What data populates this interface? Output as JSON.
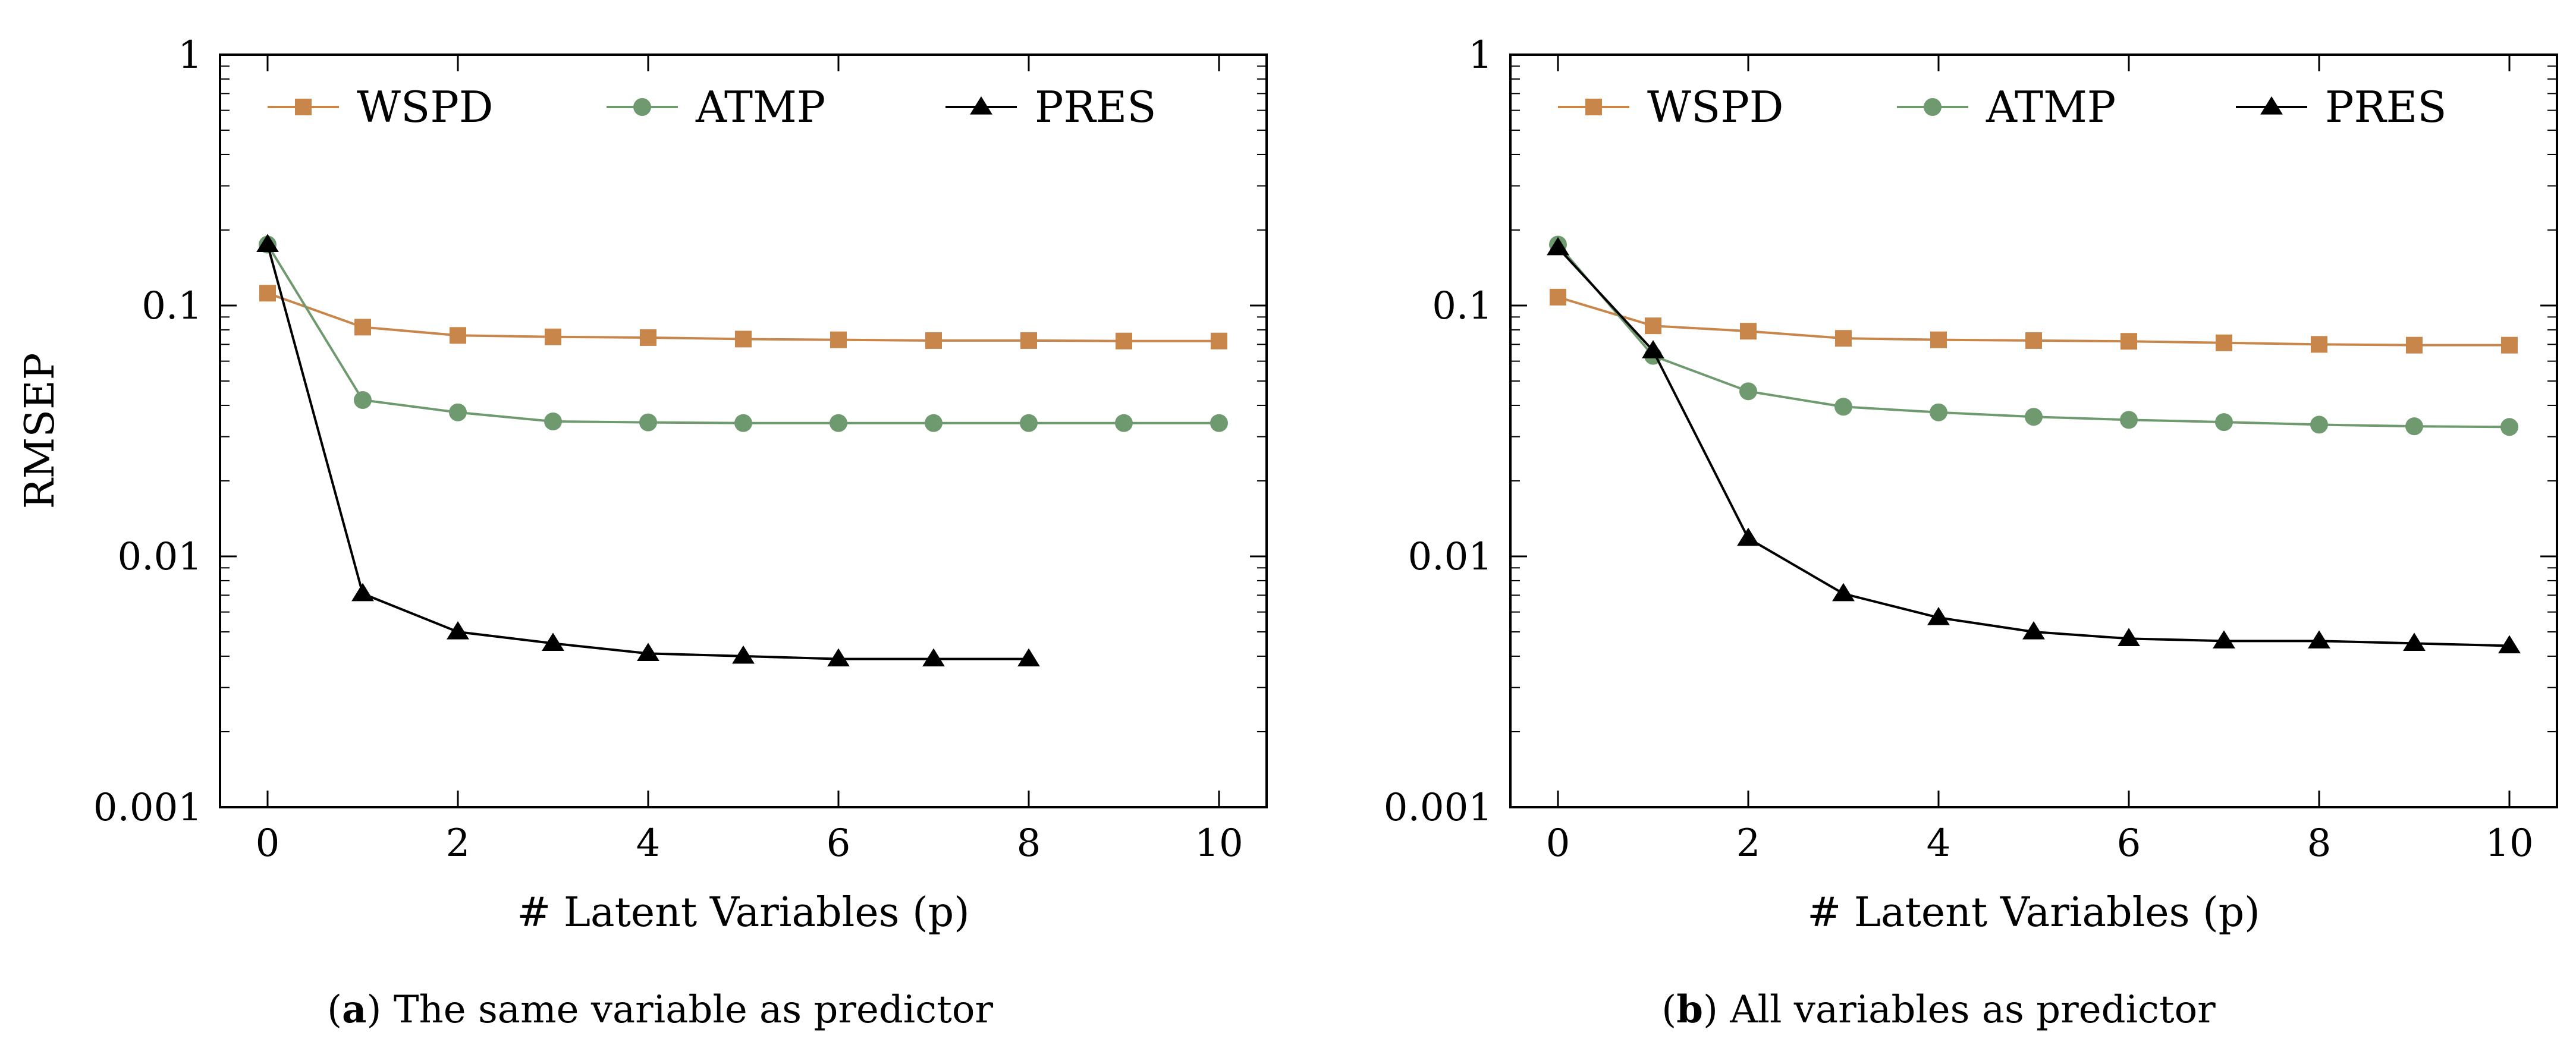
{
  "chart_data": [
    {
      "type": "line",
      "caption_letter": "a",
      "caption_text": " The same variable as predictor",
      "xlabel": "# Latent Variables (p)",
      "ylabel": "RMSEP",
      "xlim": [
        -0.5,
        10.5
      ],
      "ylim": [
        0.001,
        1
      ],
      "yscale": "log",
      "xticks": [
        0,
        2,
        4,
        6,
        8,
        10
      ],
      "yticks": [
        0.001,
        0.01,
        0.1,
        1
      ],
      "ytick_labels": [
        "0.001",
        "0.01",
        "0.1",
        "1"
      ],
      "legend_position": "top-center",
      "series": [
        {
          "name": "WSPD",
          "color": "#c8864a",
          "marker": "square",
          "x": [
            0,
            1,
            2,
            3,
            4,
            5,
            6,
            7,
            8,
            9,
            10
          ],
          "values": [
            0.112,
            0.082,
            0.076,
            0.075,
            0.0745,
            0.0735,
            0.073,
            0.0725,
            0.0725,
            0.0722,
            0.0722
          ]
        },
        {
          "name": "ATMP",
          "color": "#6f9a6f",
          "marker": "circle",
          "x": [
            0,
            1,
            2,
            3,
            4,
            5,
            6,
            7,
            8,
            9,
            10
          ],
          "values": [
            0.175,
            0.042,
            0.0375,
            0.0345,
            0.0342,
            0.034,
            0.034,
            0.034,
            0.034,
            0.034,
            0.034
          ]
        },
        {
          "name": "PRES",
          "color": "#000000",
          "marker": "triangle",
          "x": [
            0,
            1,
            2,
            3,
            4,
            5,
            6,
            7,
            8
          ],
          "values": [
            0.175,
            0.0071,
            0.005,
            0.0045,
            0.0041,
            0.004,
            0.0039,
            0.0039,
            0.0039
          ]
        }
      ]
    },
    {
      "type": "line",
      "caption_letter": "b",
      "caption_text": " All variables as predictor",
      "xlabel": "# Latent Variables (p)",
      "ylabel": "",
      "xlim": [
        -0.5,
        10.5
      ],
      "ylim": [
        0.001,
        1
      ],
      "yscale": "log",
      "xticks": [
        0,
        2,
        4,
        6,
        8,
        10
      ],
      "yticks": [
        0.001,
        0.01,
        0.1,
        1
      ],
      "ytick_labels": [
        "0.001",
        "0.01",
        "0.1",
        "1"
      ],
      "legend_position": "top-center",
      "series": [
        {
          "name": "WSPD",
          "color": "#c8864a",
          "marker": "square",
          "x": [
            0,
            1,
            2,
            3,
            4,
            5,
            6,
            7,
            8,
            9,
            10
          ],
          "values": [
            0.108,
            0.083,
            0.079,
            0.074,
            0.073,
            0.0725,
            0.072,
            0.071,
            0.07,
            0.0695,
            0.0695
          ]
        },
        {
          "name": "ATMP",
          "color": "#6f9a6f",
          "marker": "circle",
          "x": [
            0,
            1,
            2,
            3,
            4,
            5,
            6,
            7,
            8,
            9,
            10
          ],
          "values": [
            0.175,
            0.063,
            0.0455,
            0.0395,
            0.0375,
            0.036,
            0.035,
            0.0343,
            0.0335,
            0.033,
            0.0328
          ]
        },
        {
          "name": "PRES",
          "color": "#000000",
          "marker": "triangle",
          "x": [
            0,
            1,
            2,
            3,
            4,
            5,
            6,
            7,
            8,
            9,
            10
          ],
          "values": [
            0.17,
            0.066,
            0.0118,
            0.0071,
            0.0057,
            0.005,
            0.0047,
            0.0046,
            0.0046,
            0.0045,
            0.0044
          ]
        }
      ]
    }
  ]
}
